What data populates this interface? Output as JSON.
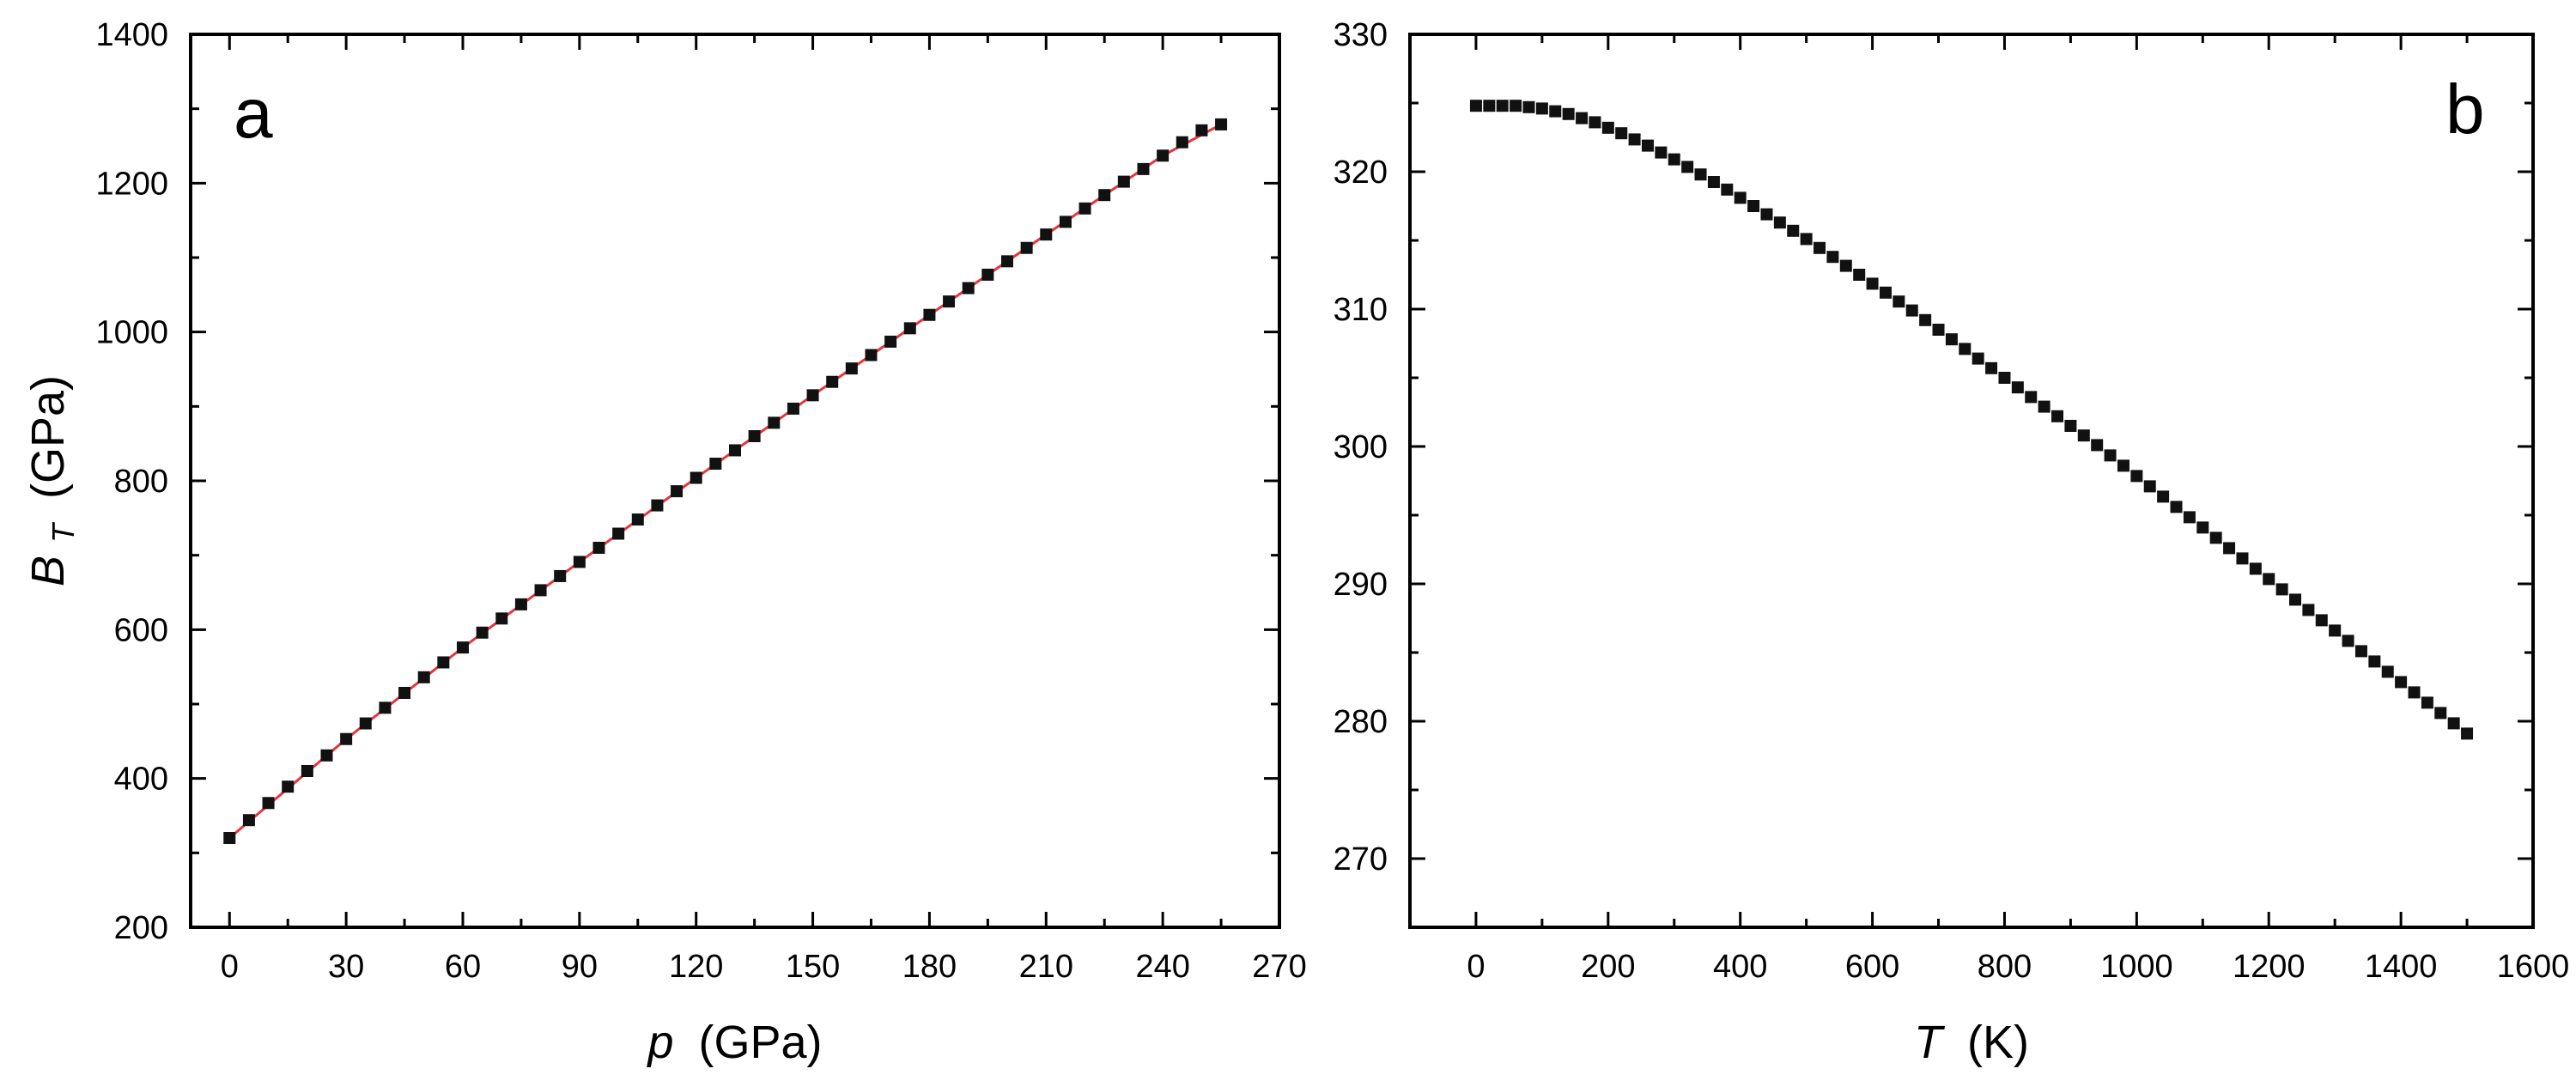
{
  "colors": {
    "marker": "#111111",
    "fit_line": "#e8343a",
    "axes": "#000000"
  },
  "chart_data": [
    {
      "type": "scatter",
      "panel_label": "a",
      "xlabel_symbol": "p",
      "xlabel_unit": "(GPa)",
      "ylabel_symbol": "B",
      "ylabel_subscript": "T",
      "ylabel_unit": "(GPa)",
      "xlim": [
        -10,
        270
      ],
      "ylim": [
        200,
        1400
      ],
      "x_ticks": [
        "0",
        "30",
        "60",
        "90",
        "120",
        "150",
        "180",
        "210",
        "240",
        "270"
      ],
      "y_ticks": [
        "200",
        "400",
        "600",
        "800",
        "1000",
        "1200",
        "1400"
      ],
      "legend": "none",
      "grid": false,
      "series": [
        {
          "marker": "square",
          "x": [
            0,
            5,
            10,
            15,
            20,
            25,
            30,
            35,
            40,
            45,
            50,
            55,
            60,
            65,
            70,
            75,
            80,
            85,
            90,
            95,
            100,
            105,
            110,
            115,
            120,
            125,
            130,
            135,
            140,
            145,
            150,
            155,
            160,
            165,
            170,
            175,
            180,
            185,
            190,
            195,
            200,
            205,
            210,
            215,
            220,
            225,
            230,
            235,
            240,
            245,
            250,
            255
          ],
          "y": [
            320,
            344,
            367,
            389,
            410,
            431,
            453,
            474,
            495,
            515,
            536,
            556,
            576,
            596,
            615,
            634,
            653,
            672,
            691,
            710,
            729,
            748,
            767,
            786,
            804,
            823,
            841,
            860,
            878,
            897,
            915,
            933,
            951,
            969,
            987,
            1005,
            1023,
            1041,
            1059,
            1077,
            1095,
            1113,
            1131,
            1148,
            1166,
            1184,
            1202,
            1219,
            1237,
            1255,
            1271,
            1279
          ]
        },
        {
          "style": "fit-line",
          "x": [
            0,
            30,
            60,
            90,
            120,
            150,
            180,
            210,
            240,
            255
          ],
          "y": [
            320,
            453,
            576,
            691,
            804,
            915,
            1023,
            1131,
            1237,
            1279
          ]
        }
      ]
    },
    {
      "type": "scatter",
      "panel_label": "b",
      "xlabel_symbol": "T",
      "xlabel_unit": "(K)",
      "xlim": [
        -100,
        1600
      ],
      "ylim": [
        265,
        330
      ],
      "x_ticks": [
        "0",
        "200",
        "400",
        "600",
        "800",
        "1000",
        "1200",
        "1400",
        "1600"
      ],
      "y_ticks": [
        "270",
        "280",
        "290",
        "300",
        "310",
        "320",
        "330"
      ],
      "legend": "none",
      "grid": false,
      "series": [
        {
          "marker": "square",
          "x": [
            0,
            20,
            40,
            60,
            80,
            100,
            120,
            140,
            160,
            180,
            200,
            220,
            240,
            260,
            280,
            300,
            320,
            340,
            360,
            380,
            400,
            420,
            440,
            460,
            480,
            500,
            520,
            540,
            560,
            580,
            600,
            620,
            640,
            660,
            680,
            700,
            720,
            740,
            760,
            780,
            800,
            820,
            840,
            860,
            880,
            900,
            920,
            940,
            960,
            980,
            1000,
            1020,
            1040,
            1060,
            1080,
            1100,
            1120,
            1140,
            1160,
            1180,
            1200,
            1220,
            1240,
            1260,
            1280,
            1300,
            1320,
            1340,
            1360,
            1380,
            1400,
            1420,
            1440,
            1460,
            1480,
            1500
          ],
          "y": [
            324.8,
            324.8,
            324.8,
            324.8,
            324.7,
            324.6,
            324.4,
            324.2,
            323.9,
            323.6,
            323.2,
            322.8,
            322.35,
            321.9,
            321.4,
            320.9,
            320.35,
            319.8,
            319.25,
            318.7,
            318.1,
            317.5,
            316.9,
            316.3,
            315.7,
            315.1,
            314.45,
            313.8,
            313.15,
            312.5,
            311.85,
            311.2,
            310.55,
            309.9,
            309.2,
            308.5,
            307.8,
            307.1,
            306.4,
            305.7,
            305.0,
            304.3,
            303.6,
            302.9,
            302.2,
            301.5,
            300.8,
            300.1,
            299.35,
            298.6,
            297.85,
            297.1,
            296.35,
            295.6,
            294.85,
            294.1,
            293.35,
            292.6,
            291.85,
            291.1,
            290.35,
            289.6,
            288.85,
            288.1,
            287.35,
            286.6,
            285.85,
            285.1,
            284.35,
            283.6,
            282.85,
            282.1,
            281.35,
            280.6,
            279.85,
            279.1
          ]
        }
      ]
    }
  ]
}
